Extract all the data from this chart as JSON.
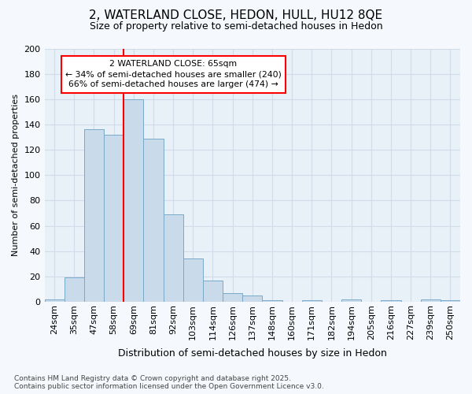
{
  "title_line1": "2, WATERLAND CLOSE, HEDON, HULL, HU12 8QE",
  "title_line2": "Size of property relative to semi-detached houses in Hedon",
  "xlabel": "Distribution of semi-detached houses by size in Hedon",
  "ylabel": "Number of semi-detached properties",
  "categories": [
    "24sqm",
    "35sqm",
    "47sqm",
    "58sqm",
    "69sqm",
    "81sqm",
    "92sqm",
    "103sqm",
    "114sqm",
    "126sqm",
    "137sqm",
    "148sqm",
    "160sqm",
    "171sqm",
    "182sqm",
    "194sqm",
    "205sqm",
    "216sqm",
    "227sqm",
    "239sqm",
    "250sqm"
  ],
  "values": [
    2,
    19,
    136,
    132,
    160,
    129,
    69,
    34,
    17,
    7,
    5,
    1,
    0,
    1,
    0,
    2,
    0,
    1,
    0,
    2,
    1
  ],
  "bar_color": "#c9daea",
  "bar_edge_color": "#7aaac8",
  "bar_linewidth": 0.7,
  "property_line_index": 4,
  "annotation_text_line1": "2 WATERLAND CLOSE: 65sqm",
  "annotation_text_line2": "← 34% of semi-detached houses are smaller (240)",
  "annotation_text_line3": "66% of semi-detached houses are larger (474) →",
  "ylim": [
    0,
    200
  ],
  "yticks": [
    0,
    20,
    40,
    60,
    80,
    100,
    120,
    140,
    160,
    180,
    200
  ],
  "grid_color": "#d0dce8",
  "plot_bg_color": "#e8f0f8",
  "fig_bg_color": "#f5f8fc",
  "footer_line1": "Contains HM Land Registry data © Crown copyright and database right 2025.",
  "footer_line2": "Contains public sector information licensed under the Open Government Licence v3.0.",
  "title_fontsize": 11,
  "subtitle_fontsize": 9,
  "ylabel_fontsize": 8,
  "xlabel_fontsize": 9,
  "tick_fontsize": 8,
  "footer_fontsize": 6.5,
  "annot_fontsize": 7.8
}
